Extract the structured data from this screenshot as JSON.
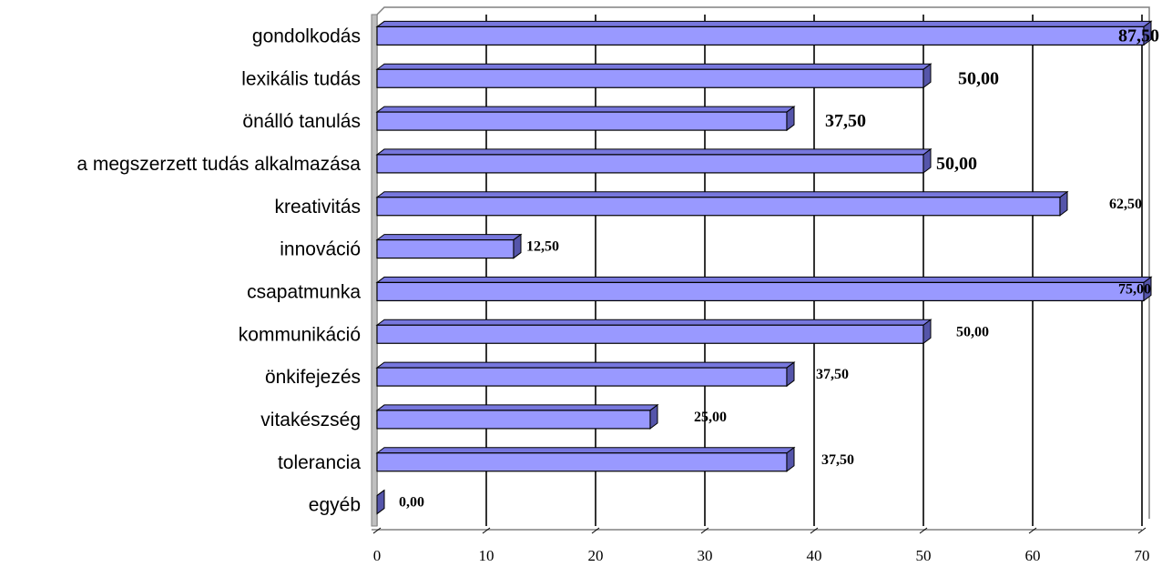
{
  "chart_data": {
    "type": "bar",
    "orientation": "horizontal",
    "style": "3d",
    "title": "",
    "xlabel": "",
    "ylabel": "",
    "xlim": [
      0,
      70
    ],
    "x_ticks": [
      "0",
      "10",
      "20",
      "30",
      "40",
      "50",
      "60",
      "70"
    ],
    "grid": "vertical",
    "legend": "none",
    "bar_color": "#9999ff",
    "categories": [
      "gondolkodás",
      "lexikális tudás",
      "önálló tanulás",
      "a megszerzett tudás alkalmazása",
      "kreativitás",
      "innováció",
      "csapatmunka",
      "kommunikáció",
      "önkifejezés",
      "vitakészség",
      "tolerancia",
      "egyéb"
    ],
    "values": [
      87.5,
      50,
      37.5,
      50,
      62.5,
      12.5,
      75,
      50,
      37.5,
      25,
      37.5,
      0
    ],
    "data_labels": [
      "87,50",
      "50,00",
      "37,50",
      "50,00",
      "62,50",
      "12,50",
      "75,00",
      "50,00",
      "37,50",
      "25,00",
      "37,50",
      "0,00"
    ]
  }
}
